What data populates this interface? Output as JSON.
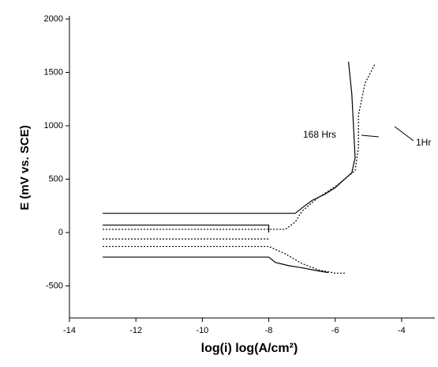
{
  "chart_data": {
    "type": "line",
    "y_label": "E (mV vs. SCE)",
    "x_label": "log(i) log(A/cm²)",
    "xlim": [
      -14,
      -3
    ],
    "ylim": [
      -800,
      2000
    ],
    "xticks": [
      -14,
      -12,
      -10,
      -8,
      -6,
      -4
    ],
    "yticks": [
      -500,
      0,
      500,
      1000,
      1500,
      2000
    ],
    "annotations": [
      "168 Hrs",
      "1Hr"
    ],
    "series": [
      {
        "name": "168 Hrs",
        "color": "#000000",
        "line_style": "solid",
        "x": [
          -13,
          -8,
          -7.8,
          -7.4,
          -7,
          -6.5,
          -6.2,
          null,
          -13,
          -8,
          -8,
          null,
          -13,
          -7.2,
          -7,
          -6.7,
          -6.3,
          -6,
          -5.5,
          -5.4,
          -5.45,
          -5.5,
          -5.6
        ],
        "values": [
          -230,
          -230,
          -280,
          -310,
          -330,
          -360,
          -375,
          null,
          70,
          70,
          0,
          null,
          180,
          180,
          230,
          300,
          360,
          420,
          560,
          700,
          1000,
          1300,
          1600
        ]
      },
      {
        "name": "1Hr",
        "color": "#000000",
        "line_style": "dotted",
        "x": [
          -13,
          -8,
          -7.5,
          -7,
          -6.5,
          -6,
          -5.7,
          null,
          -13,
          -8,
          null,
          -13,
          -7.5,
          -7.2,
          -7,
          -6.5,
          -6,
          -5.4,
          -5.3,
          -5.3,
          -5.1,
          -4.8
        ],
        "values": [
          -130,
          -130,
          -200,
          -290,
          -350,
          -380,
          -380,
          null,
          -60,
          -60,
          null,
          30,
          30,
          100,
          200,
          330,
          430,
          580,
          800,
          1100,
          1400,
          1580
        ]
      }
    ]
  }
}
